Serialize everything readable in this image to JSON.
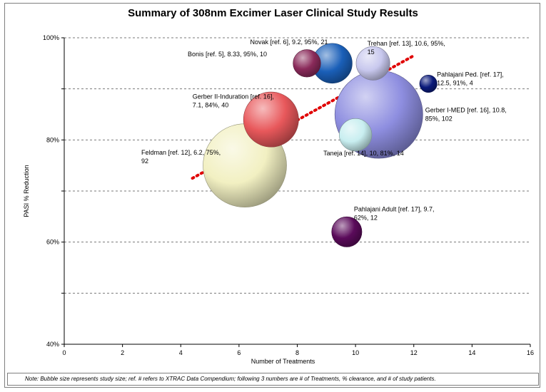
{
  "chart_data": {
    "type": "scatter",
    "subtype": "bubble",
    "title": "Summary of 308nm Excimer Laser Clinical Study Results",
    "xlabel": "Number of Treatments",
    "ylabel": "PASI % Reduction",
    "xlim": [
      0,
      16
    ],
    "ylim": [
      40,
      100
    ],
    "x_ticks": [
      "0",
      "2",
      "4",
      "6",
      "8",
      "10",
      "12",
      "14",
      "16"
    ],
    "y_ticks": [
      "40%",
      "60%",
      "80%",
      "100%"
    ],
    "grid": "horizontal dashed",
    "points": [
      {
        "label_lines": [
          "Feldman [ref. 12], 6.2, 75%,",
          "92"
        ],
        "x": 6.2,
        "y": 75,
        "size": 92,
        "color": "#f2f0c2"
      },
      {
        "label_lines": [
          "Gerber II-Induration [ref. 16],",
          "7.1, 84%, 40"
        ],
        "x": 7.1,
        "y": 84,
        "size": 40,
        "color": "#e8585b"
      },
      {
        "label_lines": [
          "Bonis [ref. 5], 8.33, 95%, 10"
        ],
        "x": 8.33,
        "y": 95,
        "size": 10,
        "color": "#8a2a5a"
      },
      {
        "label_lines": [
          "Novak [ref. 6], 9.2, 95%, 21"
        ],
        "x": 9.2,
        "y": 95,
        "size": 21,
        "color": "#1a5fb8"
      },
      {
        "label_lines": [
          "Trehan [ref. 13], 10.6, 95%,",
          "15"
        ],
        "x": 10.6,
        "y": 95,
        "size": 15,
        "color": "#c8c8ee"
      },
      {
        "label_lines": [
          "Pahlajani Ped. [ref. 17],",
          "12.5, 91%, 4"
        ],
        "x": 12.5,
        "y": 91,
        "size": 4,
        "color": "#0a1a7a"
      },
      {
        "label_lines": [
          "Gerber I-MED [ref. 16], 10.8,",
          "85%, 102"
        ],
        "x": 10.8,
        "y": 85,
        "size": 102,
        "color": "#8e8ee0"
      },
      {
        "label_lines": [
          "Taneja [ref. 14], 10, 81%, 14"
        ],
        "x": 10,
        "y": 81,
        "size": 14,
        "color": "#c8eef0"
      },
      {
        "label_lines": [
          "Pahlajani Adult [ref. 17], 9.7,",
          "62%, 12"
        ],
        "x": 9.7,
        "y": 62,
        "size": 12,
        "color": "#5a0a5a"
      }
    ],
    "trendline": {
      "style": "dotted",
      "color": "#e00000",
      "x": [
        4.4,
        12.0
      ],
      "y": [
        72.5,
        96.5
      ]
    }
  },
  "footnote": "Note:  Bubble size represents study size; ref. # refers to XTRAC Data Compendium; following 3 numbers are # of Treatments, % clearance, and # of study patients."
}
